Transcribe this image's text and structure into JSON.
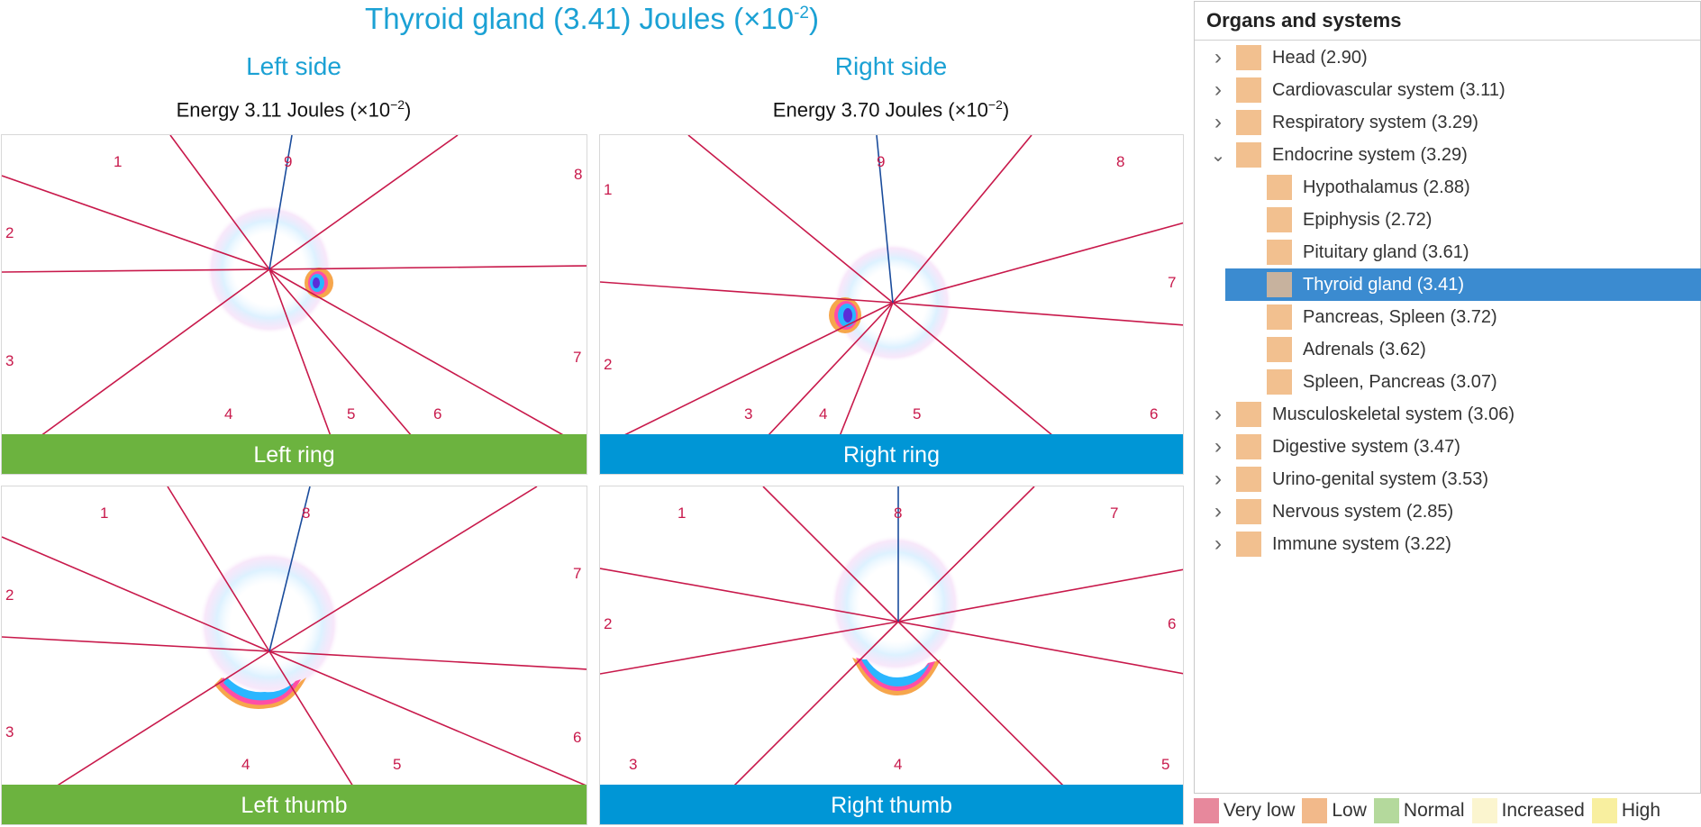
{
  "title": {
    "main": "Thyroid gland (3.41) Joules (×10",
    "exp": "-2",
    "close": ")"
  },
  "left_side": {
    "label": "Left side",
    "energy_pre": "Energy 3.11 Joules (×10",
    "energy_exp": "−2",
    "energy_post": ")"
  },
  "right_side": {
    "label": "Right side",
    "energy_pre": "Energy 3.70 Joules (×10",
    "energy_exp": "−2",
    "energy_post": ")"
  },
  "panels": [
    {
      "label": "Left ring",
      "color": "#6cb33f",
      "sectors": [
        "1",
        "2",
        "3",
        "4",
        "5",
        "6",
        "7",
        "8",
        "9"
      ]
    },
    {
      "label": "Right ring",
      "color": "#0096d6",
      "sectors": [
        "1",
        "2",
        "3",
        "4",
        "5",
        "6",
        "7",
        "8",
        "9"
      ]
    },
    {
      "label": "Left thumb",
      "color": "#6cb33f",
      "sectors": [
        "1",
        "2",
        "3",
        "4",
        "5",
        "6",
        "7",
        "8"
      ]
    },
    {
      "label": "Right thumb",
      "color": "#0096d6",
      "sectors": [
        "1",
        "2",
        "3",
        "4",
        "5",
        "6",
        "7",
        "8"
      ]
    }
  ],
  "tree": {
    "header": "Organs and systems",
    "items": [
      {
        "label": "Head (2.90)",
        "level": 0,
        "expander": "collapsed",
        "selected": false
      },
      {
        "label": "Cardiovascular system (3.11)",
        "level": 0,
        "expander": "collapsed",
        "selected": false
      },
      {
        "label": "Respiratory system (3.29)",
        "level": 0,
        "expander": "collapsed",
        "selected": false
      },
      {
        "label": "Endocrine system (3.29)",
        "level": 0,
        "expander": "expanded",
        "selected": false
      },
      {
        "label": "Hypothalamus (2.88)",
        "level": 1,
        "expander": "none",
        "selected": false
      },
      {
        "label": "Epiphysis (2.72)",
        "level": 1,
        "expander": "none",
        "selected": false
      },
      {
        "label": "Pituitary gland (3.61)",
        "level": 1,
        "expander": "none",
        "selected": false
      },
      {
        "label": "Thyroid gland (3.41)",
        "level": 1,
        "expander": "none",
        "selected": true
      },
      {
        "label": "Pancreas, Spleen (3.72)",
        "level": 1,
        "expander": "none",
        "selected": false
      },
      {
        "label": "Adrenals (3.62)",
        "level": 1,
        "expander": "none",
        "selected": false
      },
      {
        "label": "Spleen, Pancreas (3.07)",
        "level": 1,
        "expander": "none",
        "selected": false
      },
      {
        "label": "Musculoskeletal system (3.06)",
        "level": 0,
        "expander": "collapsed",
        "selected": false
      },
      {
        "label": "Digestive system (3.47)",
        "level": 0,
        "expander": "collapsed",
        "selected": false
      },
      {
        "label": "Urino-genital system (3.53)",
        "level": 0,
        "expander": "collapsed",
        "selected": false
      },
      {
        "label": "Nervous system (2.85)",
        "level": 0,
        "expander": "collapsed",
        "selected": false
      },
      {
        "label": "Immune system (3.22)",
        "level": 0,
        "expander": "collapsed",
        "selected": false
      }
    ]
  },
  "legend": [
    {
      "label": "Very low",
      "color": "#e7889c"
    },
    {
      "label": "Low",
      "color": "#f2b98a"
    },
    {
      "label": "Normal",
      "color": "#b4d99c"
    },
    {
      "label": "Increased",
      "color": "#fbf5cf"
    },
    {
      "label": "High",
      "color": "#f8ef9f"
    }
  ],
  "colors": {
    "sector_line": "#c8194b",
    "axis_line": "#1a4c9c",
    "selected_row": "#3b8bd0"
  },
  "icons": {
    "collapsed": "chevron-right-icon",
    "expanded": "chevron-down-icon"
  }
}
